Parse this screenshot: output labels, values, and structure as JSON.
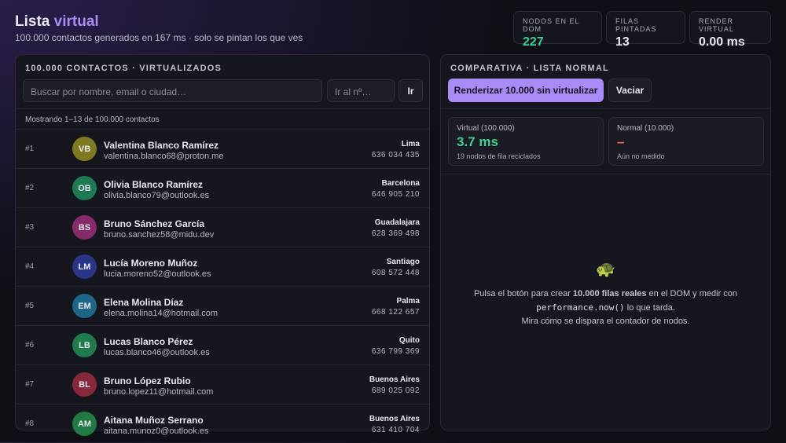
{
  "header": {
    "title": "Lista",
    "title_accent": "virtual",
    "subtitle": "100.000 contactos generados en 167 ms · solo se pintan los que ves"
  },
  "stats": [
    {
      "label": "NODOS EN EL DOM",
      "value": "227",
      "accent": true
    },
    {
      "label": "FILAS PINTADAS",
      "value": "13",
      "accent": false
    },
    {
      "label": "RENDER VIRTUAL",
      "value": "0.00 ms",
      "accent": false
    }
  ],
  "left": {
    "title": "100.000 CONTACTOS · VIRTUALIZADOS",
    "search_placeholder": "Buscar por nombre, email o ciudad…",
    "jump_placeholder": "Ir al nº…",
    "jump_button": "Ir",
    "status": "Mostrando 1–13 de 100.000 contactos",
    "rows": [
      {
        "index": "#1",
        "initials": "VB",
        "name": "Valentina Blanco Ramírez",
        "email": "valentina.blanco68@proton.me",
        "city": "Lima",
        "phone": "636 034 435",
        "color": "#7d7a22"
      },
      {
        "index": "#2",
        "initials": "OB",
        "name": "Olivia Blanco Ramírez",
        "email": "olivia.blanco79@outlook.es",
        "city": "Barcelona",
        "phone": "646 905 210",
        "color": "#1d7a52"
      },
      {
        "index": "#3",
        "initials": "BS",
        "name": "Bruno Sánchez García",
        "email": "bruno.sanchez58@midu.dev",
        "city": "Guadalajara",
        "phone": "628 369 498",
        "color": "#862a68"
      },
      {
        "index": "#4",
        "initials": "LM",
        "name": "Lucía Moreno Muñoz",
        "email": "lucia.moreno52@outlook.es",
        "city": "Santiago",
        "phone": "608 572 448",
        "color": "#2a3488"
      },
      {
        "index": "#5",
        "initials": "EM",
        "name": "Elena Molina Díaz",
        "email": "elena.molina14@hotmail.com",
        "city": "Palma",
        "phone": "668 122 657",
        "color": "#1e6688"
      },
      {
        "index": "#6",
        "initials": "LB",
        "name": "Lucas Blanco Pérez",
        "email": "lucas.blanco46@outlook.es",
        "city": "Quito",
        "phone": "636 799 369",
        "color": "#1f7a4c"
      },
      {
        "index": "#7",
        "initials": "BL",
        "name": "Bruno López Rubio",
        "email": "bruno.lopez11@hotmail.com",
        "city": "Buenos Aires",
        "phone": "689 025 092",
        "color": "#86283a"
      },
      {
        "index": "#8",
        "initials": "AM",
        "name": "Aitana Muñoz Serrano",
        "email": "aitana.munoz0@outlook.es",
        "city": "Buenos Aires",
        "phone": "631 410 704",
        "color": "#1f7a44"
      }
    ]
  },
  "right": {
    "title": "COMPARATIVA · LISTA NORMAL",
    "primary_button": "Renderizar 10.000 sin virtualizar",
    "secondary_button": "Vaciar",
    "cards": [
      {
        "label": "Virtual (100.000)",
        "value": "3.7 ms",
        "note": "19 nodos de fila reciclados",
        "color": "#3ecf8e"
      },
      {
        "label": "Normal (10.000)",
        "value": "–",
        "note": "Aún no medido",
        "color": "#f26b5b"
      }
    ],
    "empty": {
      "icon": "🐢",
      "text_1": "Pulsa el botón para crear ",
      "bold": "10.000 filas reales",
      "text_2": " en el DOM y medir con",
      "code": "performance.now()",
      "text_3": " lo que tarda.",
      "line_2": "Mira cómo se dispara el contador de nodos."
    }
  }
}
